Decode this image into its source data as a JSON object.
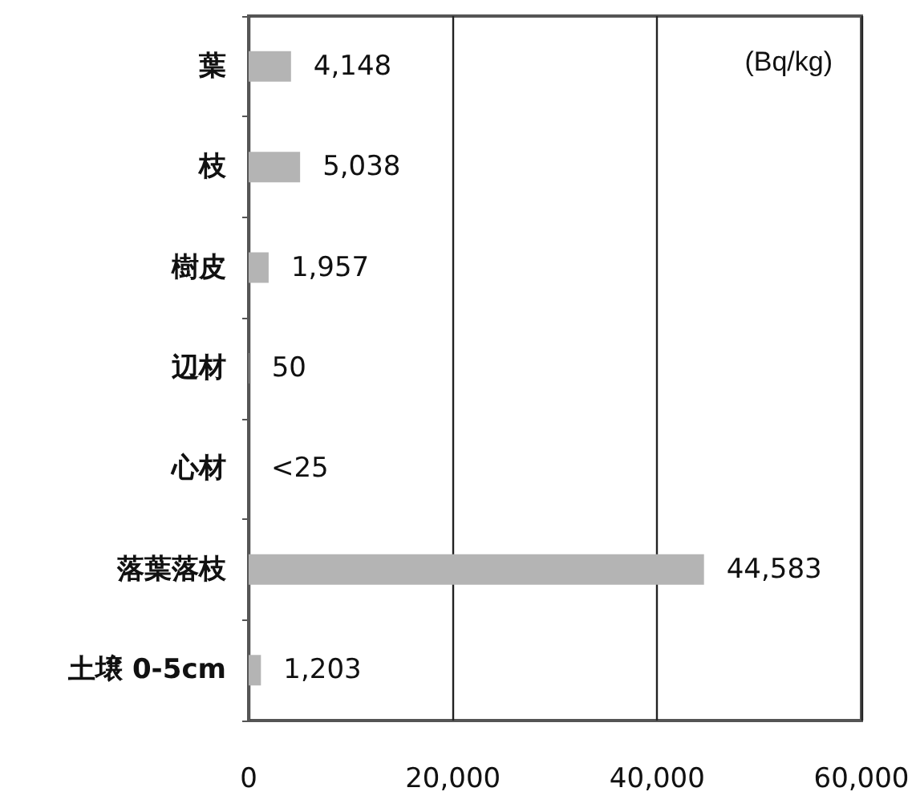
{
  "chart_data": {
    "type": "bar",
    "orientation": "horizontal",
    "categories": [
      "葉",
      "枝",
      "樹皮",
      "辺材",
      "心材",
      "落葉落枝",
      "土壌 0-5cm"
    ],
    "values": [
      4148,
      5038,
      1957,
      50,
      null,
      44583,
      1203
    ],
    "value_labels": [
      "4,148",
      "5,038",
      "1,957",
      "50",
      "<25",
      "44,583",
      "1,203"
    ],
    "color": "#b4b4b4",
    "xlim": [
      0,
      60000
    ],
    "xticks": [
      0,
      {
        "value": 20000,
        "label": "20,000"
      },
      {
        "value": 40000,
        "label": "40,000"
      },
      {
        "value": 60000,
        "label": "60,000"
      }
    ],
    "grid": "x",
    "annotations": [
      "(Bq/kg)"
    ]
  }
}
